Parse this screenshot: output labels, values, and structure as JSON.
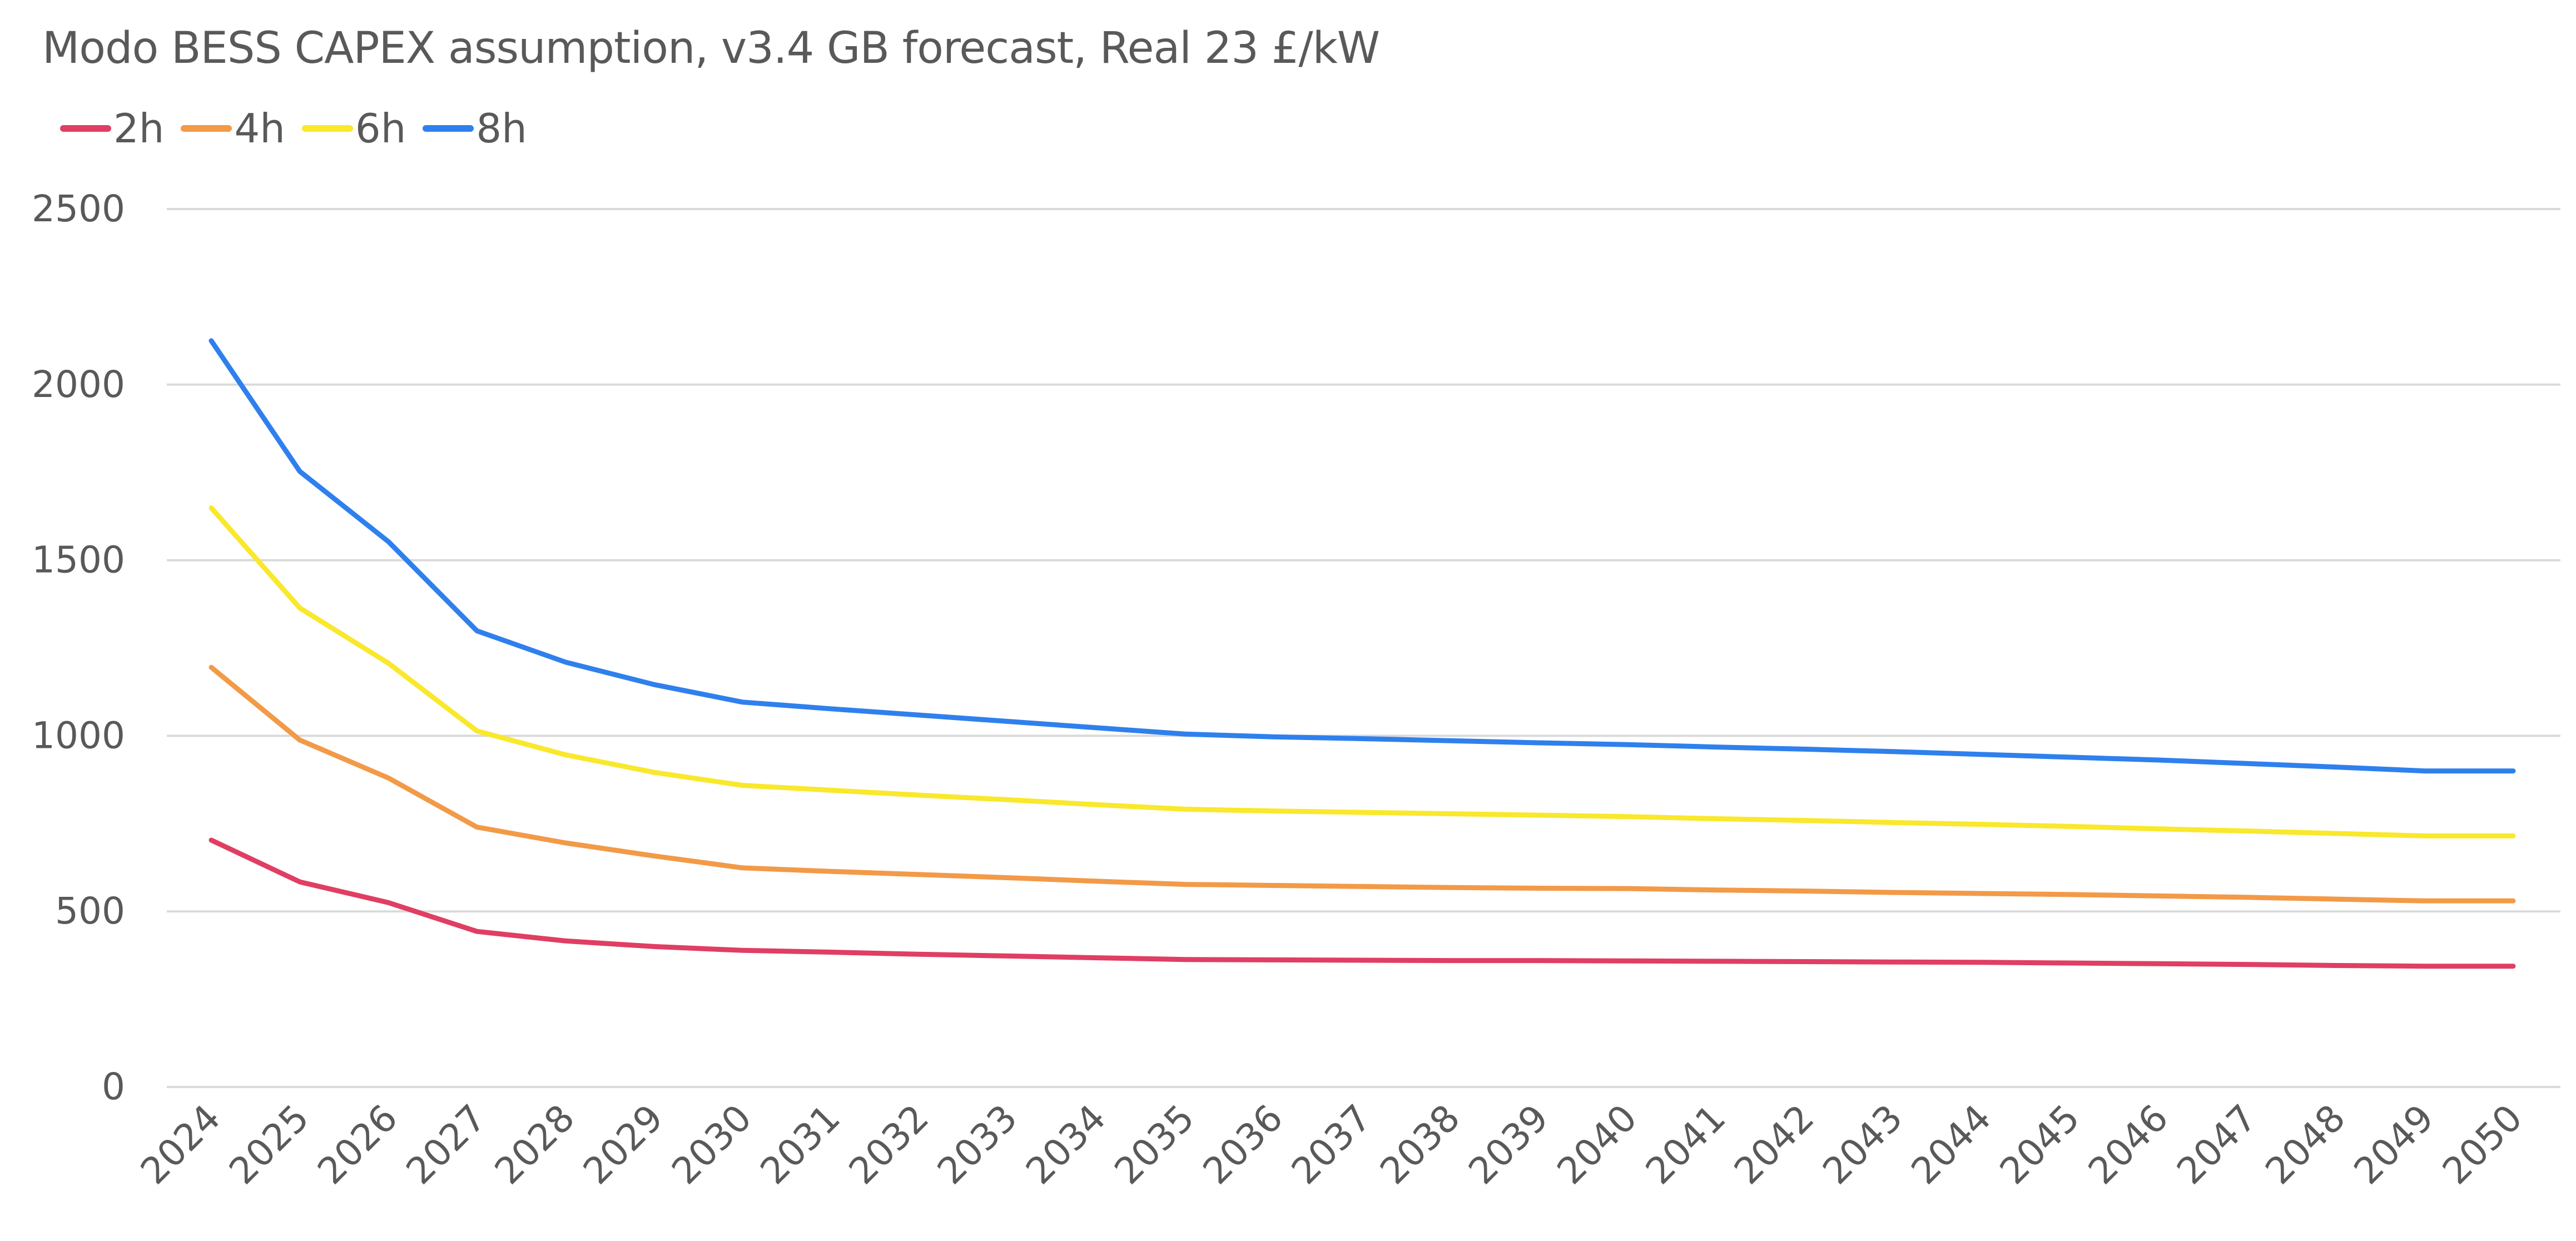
{
  "chart_data": {
    "type": "line",
    "title": "Modo BESS CAPEX assumption, v3.4 GB forecast, Real 23 £/kW",
    "xlabel": "",
    "ylabel": "",
    "ylim": [
      0,
      2500
    ],
    "yticks": [
      0,
      500,
      1000,
      1500,
      2000,
      2500
    ],
    "grid": true,
    "legend_position": "top-left",
    "categories": [
      "2024",
      "2025",
      "2026",
      "2027",
      "2028",
      "2029",
      "2030",
      "2031",
      "2032",
      "2033",
      "2034",
      "2035",
      "2036",
      "2037",
      "2038",
      "2039",
      "2040",
      "2041",
      "2042",
      "2043",
      "2044",
      "2045",
      "2046",
      "2047",
      "2048",
      "2049",
      "2050"
    ],
    "series": [
      {
        "name": "2h",
        "color": "#e03e63",
        "values": [
          703,
          584,
          525,
          443,
          416,
          400,
          389,
          384,
          378,
          373,
          368,
          363,
          362,
          361,
          360,
          360,
          359,
          358,
          357,
          356,
          355,
          353,
          351,
          349,
          346,
          344,
          344
        ]
      },
      {
        "name": "4h",
        "color": "#f29a48",
        "values": [
          1195,
          988,
          880,
          740,
          695,
          658,
          624,
          614,
          605,
          596,
          586,
          577,
          574,
          571,
          568,
          566,
          565,
          561,
          558,
          554,
          551,
          548,
          544,
          540,
          535,
          530,
          530
        ]
      },
      {
        "name": "6h",
        "color": "#f9e82c",
        "values": [
          1649,
          1364,
          1207,
          1014,
          946,
          896,
          859,
          845,
          831,
          818,
          804,
          791,
          786,
          782,
          778,
          774,
          770,
          764,
          759,
          753,
          748,
          742,
          735,
          729,
          722,
          715,
          715
        ]
      },
      {
        "name": "8h",
        "color": "#2f80ed",
        "values": [
          2125,
          1753,
          1553,
          1299,
          1210,
          1146,
          1096,
          1077,
          1059,
          1041,
          1023,
          1005,
          997,
          992,
          986,
          980,
          975,
          968,
          962,
          955,
          947,
          939,
          931,
          921,
          911,
          900,
          900
        ]
      }
    ]
  }
}
